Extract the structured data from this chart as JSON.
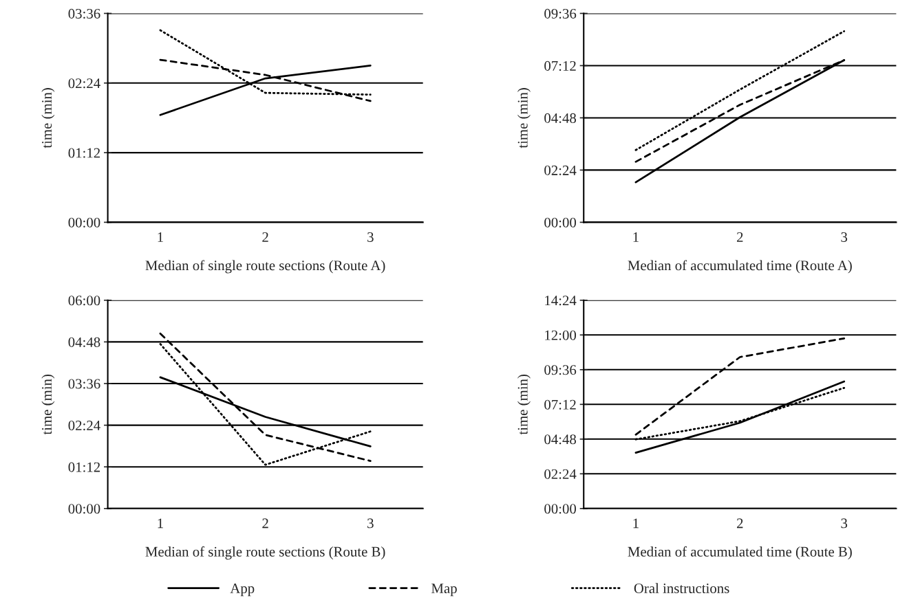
{
  "chart_data": [
    {
      "type": "line",
      "xlabel": "Median of single route sections (Route A)",
      "ylabel": "time (min)",
      "categories": [
        "1",
        "2",
        "3"
      ],
      "ylim": [
        0,
        3.6
      ],
      "yticks": [
        {
          "value": 0,
          "label": "00:00"
        },
        {
          "value": 1.2,
          "label": "01:12"
        },
        {
          "value": 2.4,
          "label": "02:24"
        },
        {
          "value": 3.6,
          "label": "03:36"
        }
      ],
      "grid": "y",
      "legend": false,
      "series": [
        {
          "color": "#000000",
          "line_style": "solid",
          "values": [
            1.85,
            2.48,
            2.7
          ]
        },
        {
          "color": "#000000",
          "line_style": "dashed",
          "values": [
            2.8,
            2.54,
            2.09
          ]
        },
        {
          "color": "#000000",
          "line_style": "dotted",
          "values": [
            3.31,
            2.23,
            2.2
          ]
        }
      ]
    },
    {
      "type": "line",
      "xlabel": "Median of accumulated time (Route A)",
      "ylabel": "time (min)",
      "categories": [
        "1",
        "2",
        "3"
      ],
      "ylim": [
        0,
        9.6
      ],
      "yticks": [
        {
          "value": 0,
          "label": "00:00"
        },
        {
          "value": 2.4,
          "label": "02:24"
        },
        {
          "value": 4.8,
          "label": "04:48"
        },
        {
          "value": 7.2,
          "label": "07:12"
        },
        {
          "value": 9.6,
          "label": "09:36"
        }
      ],
      "grid": "y",
      "legend": false,
      "series": [
        {
          "color": "#000000",
          "line_style": "solid",
          "values": [
            1.84,
            4.83,
            7.45
          ]
        },
        {
          "color": "#000000",
          "line_style": "dashed",
          "values": [
            2.78,
            5.4,
            7.45
          ]
        },
        {
          "color": "#000000",
          "line_style": "dotted",
          "values": [
            3.32,
            6.1,
            8.78
          ]
        }
      ]
    },
    {
      "type": "line",
      "xlabel": "Median of single route sections (Route B)",
      "ylabel": "time (min)",
      "categories": [
        "1",
        "2",
        "3"
      ],
      "ylim": [
        0,
        6
      ],
      "yticks": [
        {
          "value": 0,
          "label": "00:00"
        },
        {
          "value": 1.2,
          "label": "01:12"
        },
        {
          "value": 2.4,
          "label": "02:24"
        },
        {
          "value": 3.6,
          "label": "03:36"
        },
        {
          "value": 4.8,
          "label": "04:48"
        },
        {
          "value": 6,
          "label": "06:00"
        }
      ],
      "grid": "y",
      "legend": false,
      "series": [
        {
          "color": "#000000",
          "line_style": "solid",
          "values": [
            3.78,
            2.64,
            1.79
          ]
        },
        {
          "color": "#000000",
          "line_style": "dashed",
          "values": [
            5.04,
            2.12,
            1.37
          ]
        },
        {
          "color": "#000000",
          "line_style": "dotted",
          "values": [
            4.74,
            1.26,
            2.22
          ]
        }
      ]
    },
    {
      "type": "line",
      "xlabel": "Median of accumulated time (Route B)",
      "ylabel": "time (min)",
      "categories": [
        "1",
        "2",
        "3"
      ],
      "ylim": [
        0,
        14.4
      ],
      "yticks": [
        {
          "value": 0,
          "label": "00:00"
        },
        {
          "value": 2.4,
          "label": "02:24"
        },
        {
          "value": 4.8,
          "label": "04:48"
        },
        {
          "value": 7.2,
          "label": "07:12"
        },
        {
          "value": 9.6,
          "label": "09:36"
        },
        {
          "value": 12,
          "label": "12:00"
        },
        {
          "value": 14.4,
          "label": "14:24"
        }
      ],
      "grid": "y",
      "legend": "bottom",
      "series": [
        {
          "name": "App",
          "color": "#000000",
          "line_style": "solid",
          "values": [
            3.86,
            5.93,
            8.78
          ]
        },
        {
          "name": "Map",
          "color": "#000000",
          "line_style": "dashed",
          "values": [
            5.11,
            10.47,
            11.76
          ]
        },
        {
          "name": "Oral instructions",
          "color": "#000000",
          "line_style": "dotted",
          "values": [
            4.78,
            6.04,
            8.34
          ]
        }
      ]
    }
  ]
}
